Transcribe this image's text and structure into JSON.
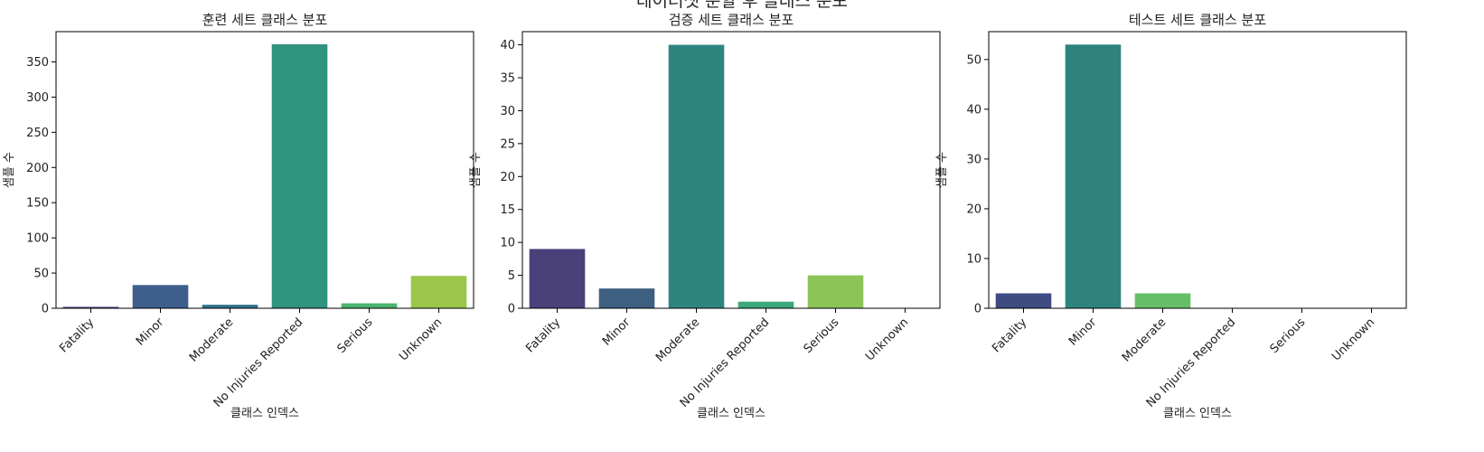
{
  "figure": {
    "suptitle": "데이터셋 분할 후 클래스 분포"
  },
  "chart_data": [
    {
      "type": "bar",
      "title": "훈련 세트 클래스 분포",
      "xlabel": "클래스 인덱스",
      "ylabel": "샘플 수",
      "categories": [
        "Fatality",
        "Minor",
        "Moderate",
        "No Injuries Reported",
        "Serious",
        "Unknown"
      ],
      "values": [
        2,
        33,
        5,
        375,
        7,
        46
      ],
      "colors": [
        "#3e3f7a",
        "#3e5f8c",
        "#2f738e",
        "#2f937e",
        "#4bb36f",
        "#9ac74a"
      ],
      "ylim": [
        0,
        393
      ],
      "yticks": [
        0,
        50,
        100,
        150,
        200,
        250,
        300,
        350
      ],
      "grid": false
    },
    {
      "type": "bar",
      "title": "검증 세트 클래스 분포",
      "xlabel": "클래스 인덱스",
      "ylabel": "샘플 수",
      "categories": [
        "Fatality",
        "Minor",
        "Moderate",
        "No Injuries Reported",
        "Serious",
        "Unknown"
      ],
      "values": [
        9,
        3,
        40,
        1,
        5,
        0
      ],
      "colors": [
        "#4a407a",
        "#3e5f80",
        "#2e8580",
        "#3aa87a",
        "#8cc457",
        "#9ac74a"
      ],
      "ylim": [
        0,
        42
      ],
      "yticks": [
        0,
        5,
        10,
        15,
        20,
        25,
        30,
        35,
        40
      ],
      "grid": false
    },
    {
      "type": "bar",
      "title": "테스트 세트 클래스 분포",
      "xlabel": "클래스 인덱스",
      "ylabel": "샘플 수",
      "categories": [
        "Fatality",
        "Minor",
        "Moderate",
        "No Injuries Reported",
        "Serious",
        "Unknown"
      ],
      "values": [
        3,
        53,
        3,
        0,
        0,
        0
      ],
      "colors": [
        "#3f4c82",
        "#2e837e",
        "#66bf66",
        "#4bb36f",
        "#8cc457",
        "#9ac74a"
      ],
      "ylim": [
        0,
        55.6
      ],
      "yticks": [
        0,
        10,
        20,
        30,
        40,
        50
      ],
      "grid": false
    }
  ]
}
